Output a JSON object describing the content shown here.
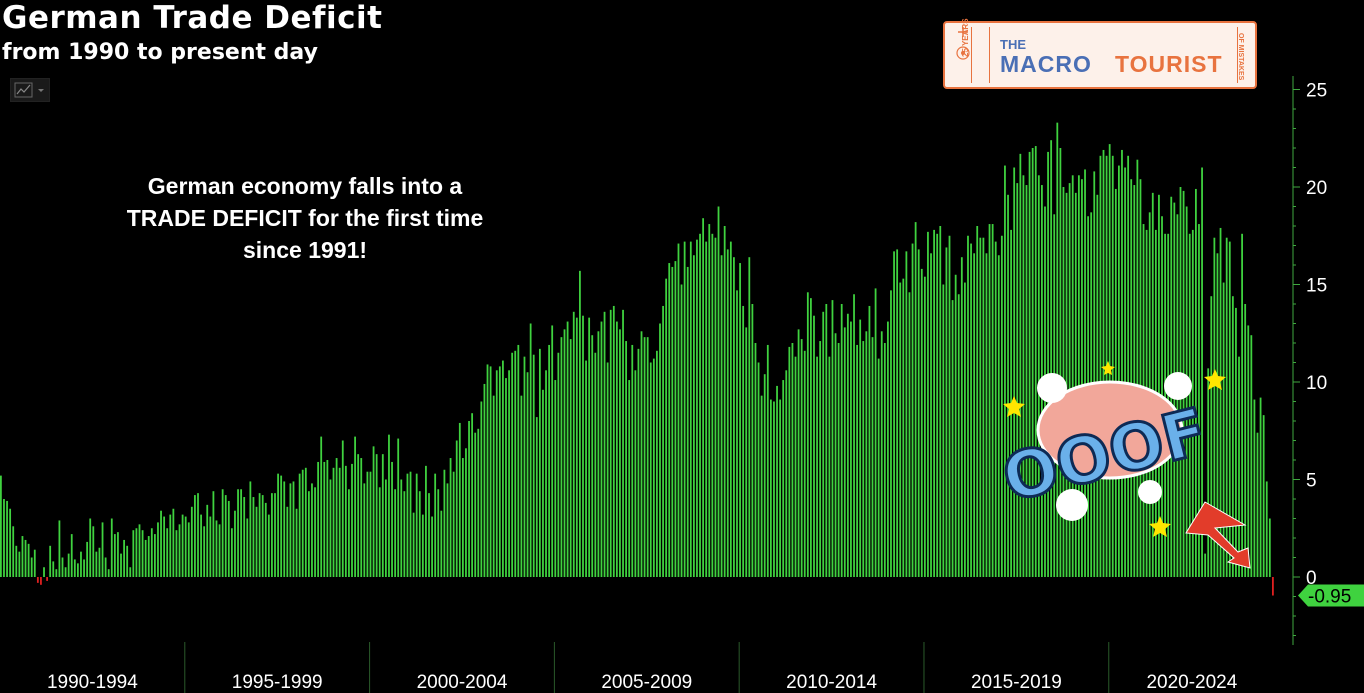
{
  "header": {
    "title": "German Trade Deficit",
    "subtitle": "from 1990 to present day"
  },
  "annotation": "German economy falls into a\nTRADE DEFICIT for the first time\nsince 1991!",
  "logo": {
    "the": "THE",
    "macro": "MACRO",
    "tourist": "TOURIST",
    "years": "25 YEARS",
    "mistakes": "OF MISTAKES"
  },
  "sticker": {
    "text": "OOOF"
  },
  "colors": {
    "bar_positive": "#3fd23f",
    "bar_negative": "#e02020",
    "axis": "#3fa83f",
    "last_value_badge": "#3fd23f",
    "logo_blue": "#4a6fb5",
    "logo_orange": "#e8733f"
  },
  "chart_data": {
    "type": "bar",
    "x_start": "1990-01",
    "frequency": "monthly",
    "x_end": "2024",
    "period_labels": [
      "1990-1994",
      "1995-1999",
      "2000-2004",
      "2005-2009",
      "2010-2014",
      "2015-2019",
      "2020-2024"
    ],
    "y_ticks": [
      0,
      5,
      10,
      15,
      20,
      25
    ],
    "ylim": [
      -3,
      25
    ],
    "last_value": -0.95,
    "last_value_label": "-0.95",
    "series": [
      {
        "values": [
          5.2,
          4.0,
          3.9,
          3.5,
          2.6,
          1.6,
          1.3,
          2.1,
          1.9,
          1.7,
          1.0,
          1.4,
          -0.3,
          -0.4,
          0.5,
          -0.2,
          1.6,
          0.8,
          0.4,
          2.9,
          1.0,
          0.5,
          1.2,
          2.2,
          0.9,
          0.7,
          1.3,
          0.9,
          1.8,
          3.0,
          2.6,
          1.3,
          1.5,
          2.8,
          1.0,
          0.4,
          3.0,
          2.2,
          2.3,
          1.2,
          1.9,
          1.6,
          0.5,
          2.4,
          2.5,
          2.7,
          2.4,
          1.9,
          2.1,
          2.5,
          2.2,
          2.8,
          3.4,
          3.1,
          2.5,
          3.2,
          3.5,
          2.4,
          2.7,
          3.2,
          3.1,
          2.8,
          3.6,
          4.2,
          4.3,
          3.2,
          2.6,
          3.7,
          3.1,
          4.4,
          2.9,
          2.7,
          4.5,
          4.2,
          3.9,
          2.5,
          3.4,
          4.5,
          4.5,
          4.1,
          3.0,
          4.9,
          4.1,
          3.6,
          4.3,
          4.2,
          3.8,
          3.2,
          4.3,
          4.3,
          5.3,
          5.2,
          4.9,
          3.6,
          4.8,
          4.9,
          3.5,
          5.3,
          5.5,
          5.6,
          4.4,
          4.8,
          4.6,
          5.9,
          7.2,
          5.9,
          6.0,
          5.0,
          5.6,
          6.1,
          5.6,
          7.0,
          5.7,
          4.5,
          5.8,
          7.2,
          6.3,
          6.1,
          4.8,
          5.4,
          5.4,
          6.7,
          6.3,
          4.6,
          6.3,
          5.0,
          7.3,
          5.9,
          4.5,
          7.1,
          5.0,
          4.4,
          5.3,
          5.4,
          3.3,
          5.3,
          4.4,
          3.2,
          5.7,
          4.3,
          3.1,
          5.3,
          4.5,
          3.4,
          5.5,
          4.8,
          6.1,
          5.4,
          7.0,
          7.9,
          6.1,
          6.6,
          8.0,
          8.4,
          7.4,
          7.6,
          9.0,
          9.9,
          10.9,
          10.8,
          9.3,
          10.6,
          10.8,
          11.1,
          10.2,
          10.6,
          11.5,
          11.6,
          11.9,
          9.3,
          11.3,
          10.5,
          13.0,
          11.4,
          8.2,
          11.7,
          9.6,
          10.6,
          11.9,
          12.9,
          10.1,
          11.5,
          12.3,
          12.7,
          13.1,
          12.2,
          13.6,
          13.3,
          15.7,
          13.4,
          11.1,
          13.3,
          12.4,
          11.5,
          12.6,
          13.1,
          13.6,
          11.0,
          13.7,
          13.9,
          13.1,
          12.7,
          13.7,
          12.1,
          10.1,
          11.9,
          10.6,
          11.7,
          12.6,
          12.3,
          12.3,
          11.0,
          11.2,
          11.6,
          13.0,
          13.9,
          15.3,
          16.1,
          15.9,
          16.2,
          17.1,
          15.0,
          17.2,
          15.9,
          17.2,
          16.5,
          17.3,
          17.6,
          18.4,
          17.2,
          18.1,
          17.6,
          17.4,
          19.0,
          16.5,
          18.0,
          16.8,
          17.2,
          16.4,
          14.7,
          16.1,
          13.9,
          12.8,
          16.4,
          14.0,
          12.0,
          11.0,
          9.3,
          10.4,
          11.9,
          9.1,
          9.0,
          9.8,
          9.1,
          10.1,
          10.6,
          11.8,
          12.0,
          11.3,
          12.7,
          12.2,
          11.6,
          14.6,
          14.3,
          13.4,
          11.3,
          12.1,
          13.6,
          14.0,
          11.3,
          14.2,
          12.5,
          12.0,
          14.0,
          12.8,
          13.5,
          13.1,
          14.5,
          11.9,
          13.2,
          12.1,
          12.6,
          13.9,
          12.3,
          14.8,
          11.2,
          12.6,
          12.0,
          13.1,
          14.7,
          16.7,
          16.8,
          15.1,
          15.3,
          16.7,
          14.6,
          17.1,
          18.2,
          16.8,
          15.8,
          15.4,
          17.7,
          16.6,
          17.8,
          17.6,
          18.0,
          15.0,
          16.9,
          17.5,
          14.2,
          15.5,
          14.5,
          16.4,
          15.1,
          17.5,
          17.1,
          16.6,
          18.0,
          17.4,
          17.4,
          16.6,
          18.1,
          18.1,
          17.2,
          16.5,
          17.5,
          21.1,
          19.6,
          17.8,
          21.0,
          20.2,
          21.7,
          20.6,
          20.1,
          21.8,
          22.0,
          22.1,
          20.6,
          20.1,
          19.0,
          21.8,
          22.4,
          18.6,
          23.3,
          22.0,
          20.0,
          19.7,
          20.2,
          20.6,
          19.7,
          20.6,
          20.4,
          20.9,
          18.5,
          18.7,
          20.8,
          19.6,
          21.6,
          21.9,
          21.6,
          22.2,
          21.6,
          19.9,
          21.1,
          21.9,
          21.0,
          21.6,
          20.4,
          20.1,
          21.4,
          20.4,
          18.1,
          17.8,
          18.7,
          19.7,
          17.8,
          19.6,
          18.5,
          17.6,
          17.6,
          19.5,
          19.2,
          18.6,
          20.0,
          19.8,
          19.0,
          17.6,
          17.8,
          19.9,
          18.1,
          21.0,
          1.2,
          10.7,
          14.4,
          17.4,
          16.6,
          17.9,
          15.1,
          17.4,
          17.2,
          14.4,
          13.8,
          11.3,
          17.6,
          14.0,
          12.9,
          12.4,
          9.1,
          7.4,
          9.2,
          8.3,
          4.9,
          3.0,
          -0.95
        ]
      }
    ]
  }
}
